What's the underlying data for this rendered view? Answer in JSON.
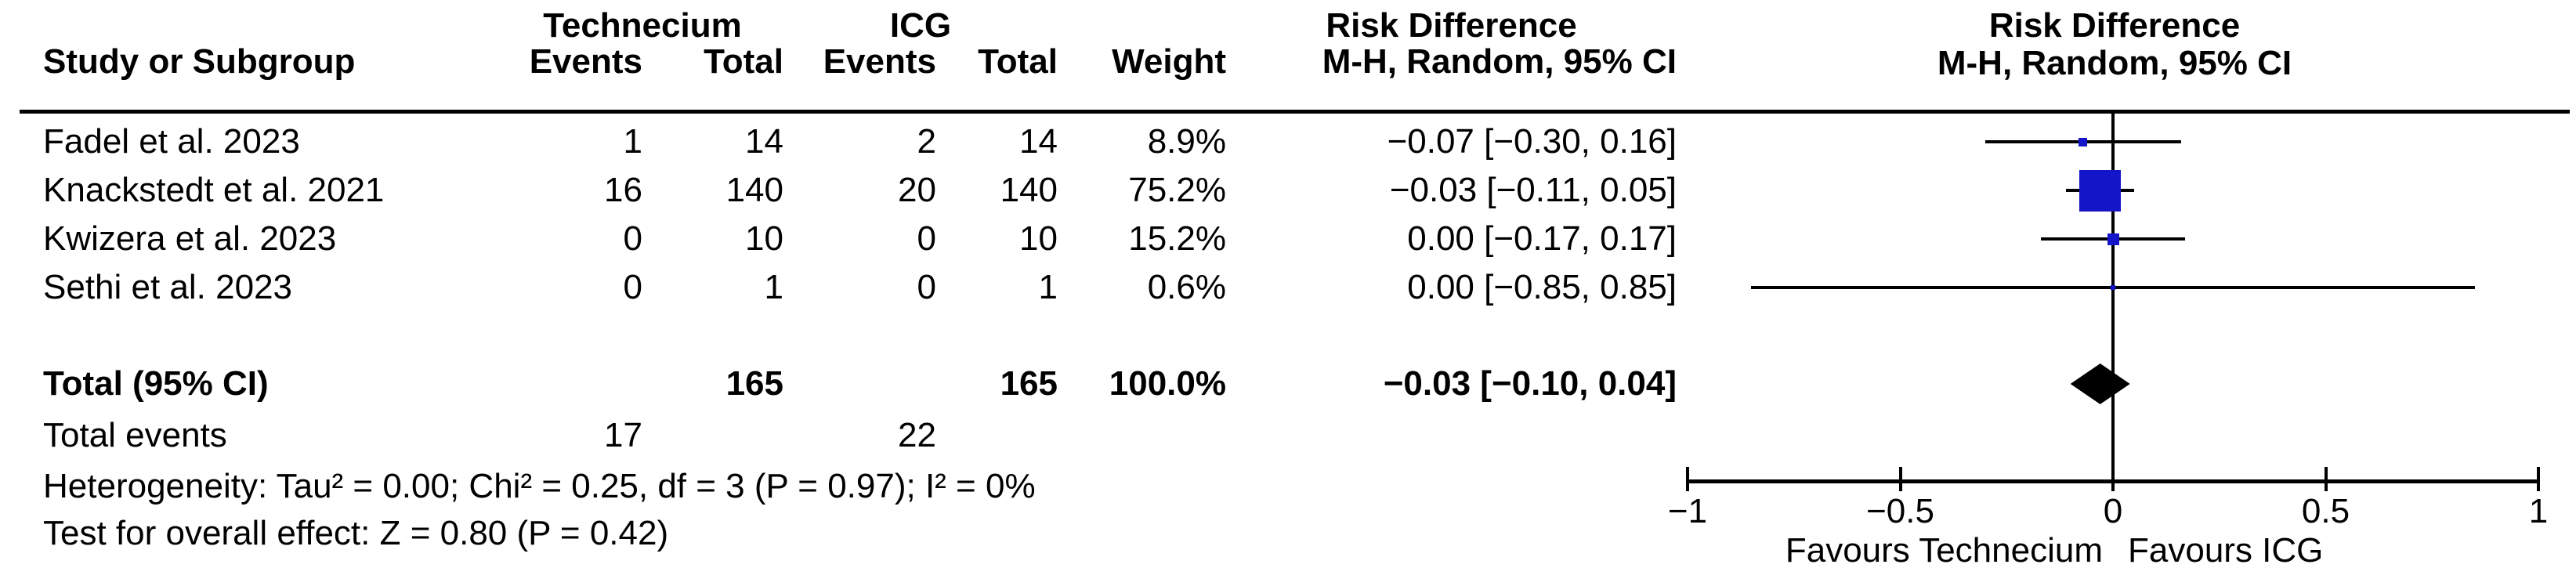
{
  "table": {
    "header": {
      "group_experimental": "Technecium",
      "group_control": "ICG",
      "risk_difference": "Risk Difference",
      "study": "Study or Subgroup",
      "events": "Events",
      "total": "Total",
      "weight": "Weight",
      "mh_ci": "M-H, Random, 95% CI"
    },
    "rows": [
      {
        "study": "Fadel et al. 2023",
        "t_events": "1",
        "t_total": "14",
        "c_events": "2",
        "c_total": "14",
        "weight": "8.9%",
        "ci": "−0.07 [−0.30, 0.16]"
      },
      {
        "study": "Knackstedt et al. 2021",
        "t_events": "16",
        "t_total": "140",
        "c_events": "20",
        "c_total": "140",
        "weight": "75.2%",
        "ci": "−0.03 [−0.11, 0.05]"
      },
      {
        "study": "Kwizera et al. 2023",
        "t_events": "0",
        "t_total": "10",
        "c_events": "0",
        "c_total": "10",
        "weight": "15.2%",
        "ci": "0.00 [−0.17, 0.17]"
      },
      {
        "study": "Sethi et al. 2023",
        "t_events": "0",
        "t_total": "1",
        "c_events": "0",
        "c_total": "1",
        "weight": "0.6%",
        "ci": "0.00 [−0.85, 0.85]"
      }
    ],
    "total_row": {
      "label": "Total (95% CI)",
      "t_total": "165",
      "c_total": "165",
      "weight": "100.0%",
      "ci": "−0.03 [−0.10, 0.04]"
    },
    "total_events": {
      "label": "Total events",
      "t_events": "17",
      "c_events": "22"
    },
    "heterogeneity": "Heterogeneity: Tau² = 0.00; Chi² = 0.25, df = 3 (P = 0.97); I² = 0%",
    "overall_effect": "Test for overall effect: Z = 0.80 (P = 0.42)"
  },
  "plot": {
    "title": "Risk Difference",
    "subtitle": "M-H, Random, 95% CI",
    "favours_left": "Favours Technecium",
    "favours_right": "Favours ICG"
  },
  "chart_data": {
    "type": "forest",
    "measure": "Risk Difference, M-H, Random, 95% CI",
    "studies": [
      {
        "name": "Fadel et al. 2023",
        "estimate": -0.07,
        "ci_low": -0.3,
        "ci_high": 0.16,
        "weight_pct": 8.9
      },
      {
        "name": "Knackstedt et al. 2021",
        "estimate": -0.03,
        "ci_low": -0.11,
        "ci_high": 0.05,
        "weight_pct": 75.2
      },
      {
        "name": "Kwizera et al. 2023",
        "estimate": 0.0,
        "ci_low": -0.17,
        "ci_high": 0.17,
        "weight_pct": 15.2
      },
      {
        "name": "Sethi et al. 2023",
        "estimate": 0.0,
        "ci_low": -0.85,
        "ci_high": 0.85,
        "weight_pct": 0.6
      }
    ],
    "total": {
      "label": "Total (95% CI)",
      "estimate": -0.03,
      "ci_low": -0.1,
      "ci_high": 0.04
    },
    "axis": {
      "min": -1,
      "max": 1,
      "ticks": [
        {
          "value": -1,
          "label": "−1"
        },
        {
          "value": -0.5,
          "label": "−0.5"
        },
        {
          "value": 0,
          "label": "0"
        },
        {
          "value": 0.5,
          "label": "0.5"
        },
        {
          "value": 1,
          "label": "1"
        }
      ]
    },
    "marker_color": "#1414c8",
    "diamond_color": "#000000"
  }
}
